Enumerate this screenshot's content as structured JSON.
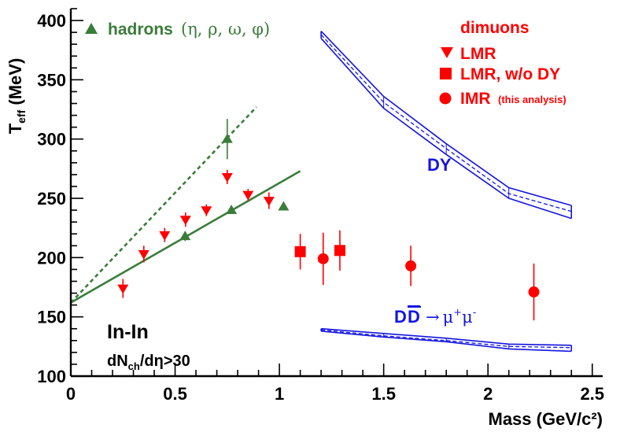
{
  "chart_data": {
    "type": "scatter",
    "title": "",
    "xlabel": "Mass (GeV/c²)",
    "ylabel": "T_eff (MeV)",
    "ylabel_main": "T",
    "ylabel_sub": "eff",
    "ylabel_unit": " (MeV)",
    "xlim": [
      0,
      2.55
    ],
    "ylim": [
      100,
      410
    ],
    "x_ticks": [
      0,
      0.5,
      1,
      1.5,
      2,
      2.5
    ],
    "x_tick_labels": [
      "0",
      "0.5",
      "1",
      "1.5",
      "2",
      "2.5"
    ],
    "y_ticks": [
      100,
      150,
      200,
      250,
      300,
      350,
      400
    ],
    "y_tick_labels": [
      "100",
      "150",
      "200",
      "250",
      "300",
      "350",
      "400"
    ],
    "colors": {
      "hadrons": "#3a7d3a",
      "dimuons": "#ff0000",
      "models": "#1515e0",
      "axis": "#000000"
    },
    "series": [
      {
        "name": "hadrons",
        "marker": "triangle-up",
        "color": "#3a7d3a",
        "points": [
          {
            "x": 0.548,
            "y": 218,
            "err": 4
          },
          {
            "x": 0.77,
            "y": 240,
            "err": 2
          },
          {
            "x": 0.75,
            "y": 300,
            "err": 17
          },
          {
            "x": 1.02,
            "y": 243,
            "err": 2
          }
        ]
      },
      {
        "name": "LMR",
        "marker": "triangle-down",
        "color": "#ff0000",
        "points": [
          {
            "x": 0.25,
            "y": 174,
            "err": 8
          },
          {
            "x": 0.35,
            "y": 203,
            "err": 7
          },
          {
            "x": 0.45,
            "y": 219,
            "err": 6
          },
          {
            "x": 0.55,
            "y": 232,
            "err": 6
          },
          {
            "x": 0.65,
            "y": 240,
            "err": 5
          },
          {
            "x": 0.75,
            "y": 268,
            "err": 6
          },
          {
            "x": 0.85,
            "y": 253,
            "err": 5
          },
          {
            "x": 0.95,
            "y": 248,
            "err": 7
          }
        ]
      },
      {
        "name": "LMR, w/o DY",
        "marker": "square",
        "color": "#ff0000",
        "points": [
          {
            "x": 1.1,
            "y": 205,
            "err": 15
          },
          {
            "x": 1.29,
            "y": 206,
            "err": 17
          }
        ]
      },
      {
        "name": "IMR",
        "marker": "circle",
        "color": "#ff0000",
        "points": [
          {
            "x": 1.21,
            "y": 199,
            "err": 22
          },
          {
            "x": 1.63,
            "y": 193,
            "err": 17
          },
          {
            "x": 2.22,
            "y": 171,
            "err": 24
          }
        ]
      }
    ],
    "fits": [
      {
        "name": "hadron-fit-solid",
        "style": "solid",
        "color": "#3a7d3a",
        "x": [
          0,
          1.1
        ],
        "y": [
          162,
          273
        ]
      },
      {
        "name": "hadron-fit-dotted",
        "style": "dashed",
        "color": "#3a7d3a",
        "x": [
          0,
          0.89
        ],
        "y": [
          162,
          327
        ]
      }
    ],
    "bands": [
      {
        "name": "DY",
        "color": "#1515e0",
        "x": [
          1.2,
          1.5,
          1.8,
          2.1,
          2.4
        ],
        "upper": [
          391,
          336,
          296,
          259,
          244
        ],
        "central": [
          388,
          331,
          292,
          254,
          239
        ],
        "lower": [
          385,
          326,
          287,
          250,
          233
        ]
      },
      {
        "name": "DDbar",
        "color": "#1515e0",
        "x": [
          1.2,
          1.5,
          1.8,
          2.1,
          2.4
        ],
        "upper": [
          140,
          136,
          132,
          127,
          126
        ],
        "central": [
          139,
          134,
          130,
          125,
          124
        ],
        "lower": [
          138,
          133,
          129,
          123,
          121
        ]
      }
    ],
    "legend": {
      "hadrons_label": "hadrons",
      "hadrons_species": "(η, ρ, ω, φ)",
      "dimuons_title": "dimuons",
      "lmr_label": "LMR",
      "lmr_wodY_label": "LMR, w/o DY",
      "imr_label": "IMR",
      "imr_note": "(this analysis)"
    },
    "annotations": {
      "dy_label": "DY",
      "dd_label_D1": "D",
      "dd_label_D2": "D",
      "dd_arrow": "→",
      "dd_mu1": "μ",
      "dd_plus": "+",
      "dd_mu2": "μ",
      "dd_minus": "-",
      "system": "In-In",
      "cut_prefix": "dN",
      "cut_sub": "ch",
      "cut_suffix": "/dη>30"
    }
  }
}
